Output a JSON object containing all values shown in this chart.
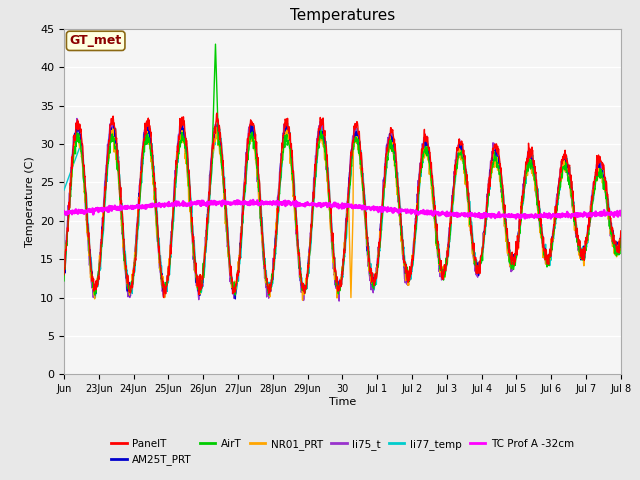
{
  "title": "Temperatures",
  "xlabel": "Time",
  "ylabel": "Temperature (C)",
  "ylim": [
    0,
    45
  ],
  "yticks": [
    0,
    5,
    10,
    15,
    20,
    25,
    30,
    35,
    40,
    45
  ],
  "x_tick_labels": [
    "Jun",
    "23Jun",
    "24Jun",
    "25Jun",
    "26Jun",
    "27Jun",
    "28Jun",
    "29Jun",
    "30",
    "Jul 1",
    "Jul 2",
    "Jul 3",
    "Jul 4",
    "Jul 5",
    "Jul 6",
    "Jul 7",
    "Jul 8"
  ],
  "annotation_text": "GT_met",
  "annotation_color": "#8B0000",
  "annotation_bg": "#FFFFE0",
  "annotation_border": "#8B6914",
  "series_colors": {
    "PanelT": "#FF0000",
    "AM25T_PRT": "#0000CD",
    "AirT": "#00CC00",
    "NR01_PRT": "#FFA500",
    "li75_t": "#9933CC",
    "li77_temp": "#00CCCC",
    "TC Prof A -32cm": "#FF00FF"
  },
  "background_color": "#E8E8E8",
  "plot_bg": "#F5F5F5",
  "grid_color": "#FFFFFF",
  "title_fontsize": 11,
  "figsize": [
    6.4,
    4.8
  ],
  "dpi": 100
}
